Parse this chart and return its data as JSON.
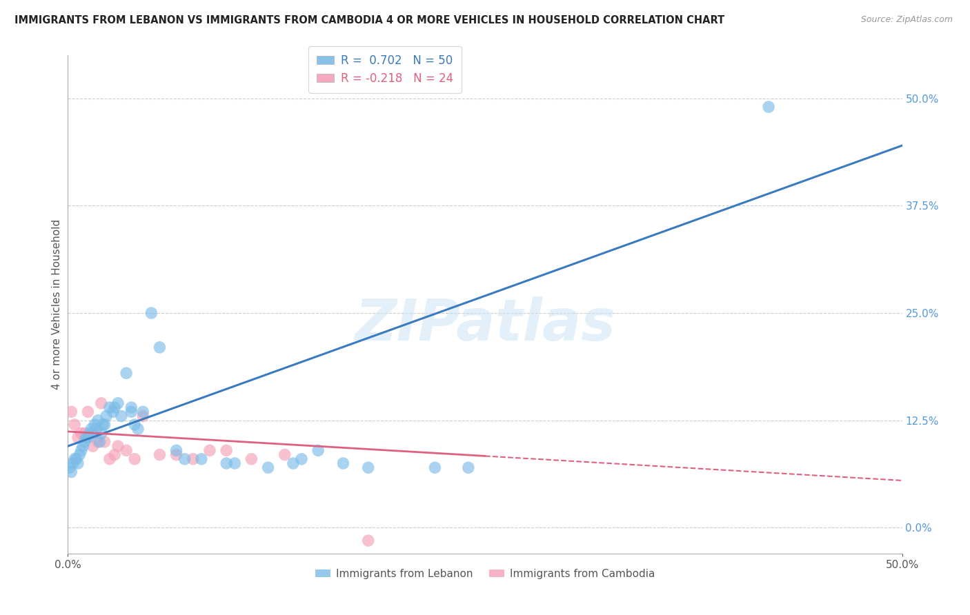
{
  "title": "IMMIGRANTS FROM LEBANON VS IMMIGRANTS FROM CAMBODIA 4 OR MORE VEHICLES IN HOUSEHOLD CORRELATION CHART",
  "source": "Source: ZipAtlas.com",
  "ylabel": "4 or more Vehicles in Household",
  "ytick_values": [
    0.0,
    12.5,
    25.0,
    37.5,
    50.0
  ],
  "xlim": [
    0.0,
    50.0
  ],
  "ylim": [
    -3.0,
    55.0
  ],
  "lebanon_R": 0.702,
  "lebanon_N": 50,
  "cambodia_R": -0.218,
  "cambodia_N": 24,
  "lebanon_color": "#7bbce8",
  "cambodia_color": "#f4a0b8",
  "lebanon_line_color": "#3a7abf",
  "cambodia_line_color": "#e06080",
  "watermark": "ZIPatlas",
  "lebanon_line_x0": 0.0,
  "lebanon_line_y0": 9.5,
  "lebanon_line_x1": 50.0,
  "lebanon_line_y1": 44.5,
  "cambodia_line_x0": 0.0,
  "cambodia_line_y0": 11.2,
  "cambodia_line_x1": 50.0,
  "cambodia_line_y1": 5.5,
  "cambodia_solid_end": 25.0,
  "lebanon_scatter_x": [
    0.1,
    0.2,
    0.3,
    0.4,
    0.5,
    0.6,
    0.7,
    0.8,
    0.9,
    1.0,
    1.1,
    1.2,
    1.3,
    1.4,
    1.5,
    1.6,
    1.7,
    1.8,
    1.9,
    2.0,
    2.1,
    2.2,
    2.3,
    2.5,
    2.7,
    2.8,
    3.0,
    3.2,
    3.5,
    3.8,
    4.0,
    4.2,
    4.5,
    5.0,
    5.5,
    6.5,
    7.0,
    8.0,
    9.5,
    10.0,
    12.0,
    13.5,
    14.0,
    15.0,
    16.5,
    18.0,
    22.0,
    24.0,
    3.8,
    42.0
  ],
  "lebanon_scatter_y": [
    7.0,
    6.5,
    7.5,
    8.0,
    8.0,
    7.5,
    8.5,
    9.0,
    9.5,
    10.0,
    10.5,
    10.5,
    11.0,
    11.5,
    11.0,
    12.0,
    11.5,
    12.5,
    10.0,
    11.0,
    12.0,
    12.0,
    13.0,
    14.0,
    13.5,
    14.0,
    14.5,
    13.0,
    18.0,
    13.5,
    12.0,
    11.5,
    13.5,
    25.0,
    21.0,
    9.0,
    8.0,
    8.0,
    7.5,
    7.5,
    7.0,
    7.5,
    8.0,
    9.0,
    7.5,
    7.0,
    7.0,
    7.0,
    14.0,
    49.0
  ],
  "cambodia_scatter_x": [
    0.2,
    0.4,
    0.6,
    0.8,
    1.0,
    1.2,
    1.5,
    1.8,
    2.0,
    2.2,
    2.5,
    3.0,
    3.5,
    4.0,
    4.5,
    5.5,
    6.5,
    7.5,
    8.5,
    9.5,
    11.0,
    13.0,
    18.0,
    2.8
  ],
  "cambodia_scatter_y": [
    13.5,
    12.0,
    10.5,
    11.0,
    11.0,
    13.5,
    9.5,
    10.0,
    14.5,
    10.0,
    8.0,
    9.5,
    9.0,
    8.0,
    13.0,
    8.5,
    8.5,
    8.0,
    9.0,
    9.0,
    8.0,
    8.5,
    -1.5,
    8.5
  ]
}
